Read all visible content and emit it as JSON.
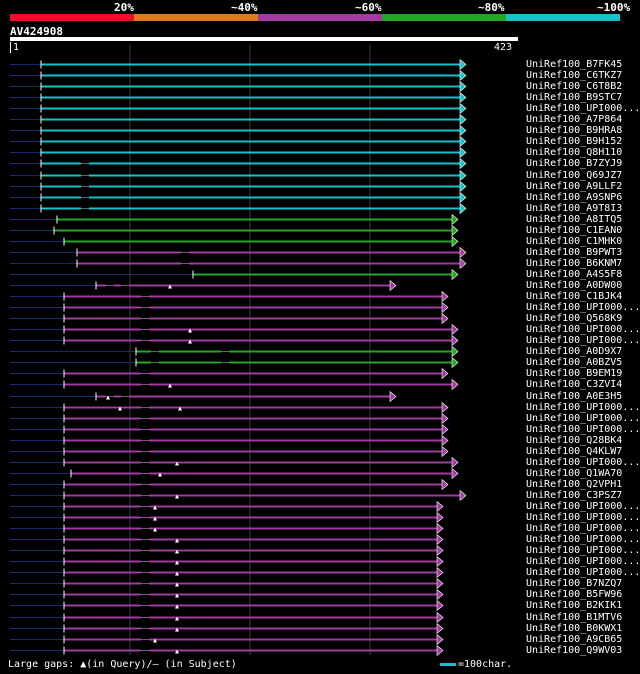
{
  "colors": {
    "cyan": "#17c1c9",
    "green": "#22a722",
    "purple": "#a23aa2",
    "red": "#e8102a",
    "orange": "#e07a1a",
    "query": "#1a2a6a",
    "grid": "#3a3a3a"
  },
  "scale": {
    "labels": [
      {
        "text": "20%",
        "color": "#e8102a"
      },
      {
        "text": "~40%",
        "color": "#e07a1a"
      },
      {
        "text": "~60%",
        "color": "#a23aa2"
      },
      {
        "text": "~80%",
        "color": "#22a722"
      },
      {
        "text": "~100%",
        "color": "#17c1c9"
      }
    ]
  },
  "query": {
    "name": "AV424908",
    "start": "1",
    "end": "423"
  },
  "hits": [
    {
      "label": "UniRef100_B7FK45",
      "color": "cyan",
      "start": 41,
      "end": 460,
      "gaps": [],
      "marks": [],
      "arrow": "right"
    },
    {
      "label": "UniRef100_C6TKZ7",
      "color": "cyan",
      "start": 41,
      "end": 460,
      "gaps": [],
      "marks": [],
      "arrow": "right"
    },
    {
      "label": "UniRef100_C6T8B2",
      "color": "cyan",
      "start": 41,
      "end": 460,
      "gaps": [],
      "marks": [],
      "arrow": "right"
    },
    {
      "label": "UniRef100_B9STC7",
      "color": "cyan",
      "start": 41,
      "end": 460,
      "gaps": [],
      "marks": [],
      "arrow": "right"
    },
    {
      "label": "UniRef100_UPI000...",
      "color": "cyan",
      "start": 41,
      "end": 460,
      "gaps": [],
      "marks": [],
      "arrow": "right"
    },
    {
      "label": "UniRef100_A7P864",
      "color": "cyan",
      "start": 41,
      "end": 460,
      "gaps": [],
      "marks": [],
      "arrow": "right"
    },
    {
      "label": "UniRef100_B9HRA8",
      "color": "cyan",
      "start": 41,
      "end": 460,
      "gaps": [],
      "marks": [],
      "arrow": "right"
    },
    {
      "label": "UniRef100_B9H152",
      "color": "cyan",
      "start": 41,
      "end": 460,
      "gaps": [],
      "marks": [],
      "arrow": "right"
    },
    {
      "label": "UniRef100_Q8H110",
      "color": "cyan",
      "start": 41,
      "end": 460,
      "gaps": [],
      "marks": [],
      "arrow": "right"
    },
    {
      "label": "UniRef100_B7ZYJ9",
      "color": "cyan",
      "start": 41,
      "end": 460,
      "gaps": [
        85
      ],
      "marks": [],
      "arrow": "right"
    },
    {
      "label": "UniRef100_Q69JZ7",
      "color": "cyan",
      "start": 41,
      "end": 460,
      "gaps": [
        85
      ],
      "marks": [],
      "arrow": "right"
    },
    {
      "label": "UniRef100_A9LLF2",
      "color": "cyan",
      "start": 41,
      "end": 460,
      "gaps": [
        85
      ],
      "marks": [],
      "arrow": "right"
    },
    {
      "label": "UniRef100_A9SNP6",
      "color": "cyan",
      "start": 41,
      "end": 460,
      "gaps": [
        85
      ],
      "marks": [],
      "arrow": "right"
    },
    {
      "label": "UniRef100_A9T8I3",
      "color": "cyan",
      "start": 41,
      "end": 460,
      "gaps": [
        85
      ],
      "marks": [],
      "arrow": "right"
    },
    {
      "label": "UniRef100_A8ITQ5",
      "color": "green",
      "start": 57,
      "end": 452,
      "gaps": [],
      "marks": [],
      "arrow": "right"
    },
    {
      "label": "UniRef100_C1EAN0",
      "color": "green",
      "start": 54,
      "end": 452,
      "gaps": [],
      "marks": [],
      "arrow": "right"
    },
    {
      "label": "UniRef100_C1MHK0",
      "color": "green",
      "start": 64,
      "end": 452,
      "gaps": [],
      "marks": [],
      "arrow": "right"
    },
    {
      "label": "UniRef100_B9PWT3",
      "color": "purple",
      "start": 77,
      "end": 460,
      "gaps": [
        185
      ],
      "marks": [],
      "arrow": "right"
    },
    {
      "label": "UniRef100_B6KNM7",
      "color": "purple",
      "start": 77,
      "end": 460,
      "gaps": [
        185
      ],
      "marks": [],
      "arrow": "right"
    },
    {
      "label": "UniRef100_A4S5F8",
      "color": "green",
      "start": 193,
      "end": 452,
      "gaps": [],
      "marks": [],
      "arrow": "right"
    },
    {
      "label": "UniRef100_A0DW00",
      "color": "purple",
      "start": 96,
      "end": 390,
      "gaps": [
        110,
        125
      ],
      "marks": [
        170
      ],
      "arrow": "right"
    },
    {
      "label": "UniRef100_C1BJK4",
      "color": "purple",
      "start": 64,
      "end": 442,
      "gaps": [
        145
      ],
      "marks": [],
      "arrow": "right"
    },
    {
      "label": "UniRef100_UPI000...",
      "color": "purple",
      "start": 64,
      "end": 442,
      "gaps": [
        145
      ],
      "marks": [],
      "arrow": "right"
    },
    {
      "label": "UniRef100_Q568K9",
      "color": "purple",
      "start": 64,
      "end": 442,
      "gaps": [
        145
      ],
      "marks": [],
      "arrow": "right"
    },
    {
      "label": "UniRef100_UPI000...",
      "color": "purple",
      "start": 64,
      "end": 452,
      "gaps": [
        145
      ],
      "marks": [
        190
      ],
      "arrow": "right"
    },
    {
      "label": "UniRef100_UPI000...",
      "color": "purple",
      "start": 64,
      "end": 452,
      "gaps": [
        145
      ],
      "marks": [
        190
      ],
      "arrow": "right"
    },
    {
      "label": "UniRef100_A0D9X7",
      "color": "green",
      "start": 136,
      "end": 452,
      "gaps": [
        155,
        225
      ],
      "marks": [],
      "arrow": "right"
    },
    {
      "label": "UniRef100_A0BZV5",
      "color": "green",
      "start": 136,
      "end": 452,
      "gaps": [
        155,
        225
      ],
      "marks": [],
      "arrow": "right"
    },
    {
      "label": "UniRef100_B9EM19",
      "color": "purple",
      "start": 64,
      "end": 442,
      "gaps": [
        145
      ],
      "marks": [],
      "arrow": "right"
    },
    {
      "label": "UniRef100_C3ZVI4",
      "color": "purple",
      "start": 64,
      "end": 452,
      "gaps": [
        145
      ],
      "marks": [
        170
      ],
      "arrow": "right"
    },
    {
      "label": "UniRef100_A0E3H5",
      "color": "purple",
      "start": 96,
      "end": 390,
      "gaps": [
        110,
        125
      ],
      "marks": [
        108
      ],
      "arrow": "right"
    },
    {
      "label": "UniRef100_UPI000...",
      "color": "purple",
      "start": 64,
      "end": 442,
      "gaps": [
        145
      ],
      "marks": [
        120,
        180
      ],
      "arrow": "right"
    },
    {
      "label": "UniRef100_UPI000...",
      "color": "purple",
      "start": 64,
      "end": 442,
      "gaps": [
        145
      ],
      "marks": [],
      "arrow": "right"
    },
    {
      "label": "UniRef100_UPI000...",
      "color": "purple",
      "start": 64,
      "end": 442,
      "gaps": [
        145
      ],
      "marks": [],
      "arrow": "right"
    },
    {
      "label": "UniRef100_Q28BK4",
      "color": "purple",
      "start": 64,
      "end": 442,
      "gaps": [
        145
      ],
      "marks": [],
      "arrow": "right"
    },
    {
      "label": "UniRef100_Q4KLW7",
      "color": "purple",
      "start": 64,
      "end": 442,
      "gaps": [
        145
      ],
      "marks": [],
      "arrow": "right"
    },
    {
      "label": "UniRef100_UPI000...",
      "color": "purple",
      "start": 64,
      "end": 452,
      "gaps": [
        145
      ],
      "marks": [
        177
      ],
      "arrow": "right"
    },
    {
      "label": "UniRef100_Q1WA70",
      "color": "purple",
      "start": 71,
      "end": 452,
      "gaps": [
        145
      ],
      "marks": [
        160
      ],
      "arrow": "right"
    },
    {
      "label": "UniRef100_Q2VPH1",
      "color": "purple",
      "start": 64,
      "end": 442,
      "gaps": [
        145
      ],
      "marks": [],
      "arrow": "right"
    },
    {
      "label": "UniRef100_C3PSZ7",
      "color": "purple",
      "start": 64,
      "end": 460,
      "gaps": [
        145
      ],
      "marks": [
        177
      ],
      "arrow": "right"
    },
    {
      "label": "UniRef100_UPI000...",
      "color": "purple",
      "start": 64,
      "end": 437,
      "gaps": [
        145
      ],
      "marks": [
        155
      ],
      "arrow": "right"
    },
    {
      "label": "UniRef100_UPI000...",
      "color": "purple",
      "start": 64,
      "end": 437,
      "gaps": [
        145
      ],
      "marks": [
        155
      ],
      "arrow": "right"
    },
    {
      "label": "UniRef100_UPI000...",
      "color": "purple",
      "start": 64,
      "end": 437,
      "gaps": [
        145
      ],
      "marks": [
        155
      ],
      "arrow": "right"
    },
    {
      "label": "UniRef100_UPI000...",
      "color": "purple",
      "start": 64,
      "end": 437,
      "gaps": [
        145
      ],
      "marks": [
        177
      ],
      "arrow": "right"
    },
    {
      "label": "UniRef100_UPI000...",
      "color": "purple",
      "start": 64,
      "end": 437,
      "gaps": [
        145
      ],
      "marks": [
        177
      ],
      "arrow": "right"
    },
    {
      "label": "UniRef100_UPI000...",
      "color": "purple",
      "start": 64,
      "end": 437,
      "gaps": [
        145
      ],
      "marks": [
        177
      ],
      "arrow": "right"
    },
    {
      "label": "UniRef100_UPI000...",
      "color": "purple",
      "start": 64,
      "end": 437,
      "gaps": [
        145
      ],
      "marks": [
        177
      ],
      "arrow": "right"
    },
    {
      "label": "UniRef100_B7NZQ7",
      "color": "purple",
      "start": 64,
      "end": 437,
      "gaps": [
        145
      ],
      "marks": [
        177
      ],
      "arrow": "right"
    },
    {
      "label": "UniRef100_B5FW96",
      "color": "purple",
      "start": 64,
      "end": 437,
      "gaps": [
        145
      ],
      "marks": [
        177
      ],
      "arrow": "right"
    },
    {
      "label": "UniRef100_B2KIK1",
      "color": "purple",
      "start": 64,
      "end": 437,
      "gaps": [
        145
      ],
      "marks": [
        177
      ],
      "arrow": "right"
    },
    {
      "label": "UniRef100_B1MTV6",
      "color": "purple",
      "start": 64,
      "end": 437,
      "gaps": [
        145
      ],
      "marks": [
        177
      ],
      "arrow": "right"
    },
    {
      "label": "UniRef100_B0KWX1",
      "color": "purple",
      "start": 64,
      "end": 437,
      "gaps": [
        145
      ],
      "marks": [
        177
      ],
      "arrow": "right"
    },
    {
      "label": "UniRef100_A9CB65",
      "color": "purple",
      "start": 64,
      "end": 437,
      "gaps": [
        145
      ],
      "marks": [
        155
      ],
      "arrow": "right"
    },
    {
      "label": "UniRef100_Q9WV03",
      "color": "purple",
      "start": 64,
      "end": 437,
      "gaps": [
        145
      ],
      "marks": [
        177
      ],
      "arrow": "right"
    }
  ],
  "footer": {
    "text": "Large gaps: ▲(in Query)/— (in Subject)"
  },
  "legend": {
    "text": "=100char."
  }
}
